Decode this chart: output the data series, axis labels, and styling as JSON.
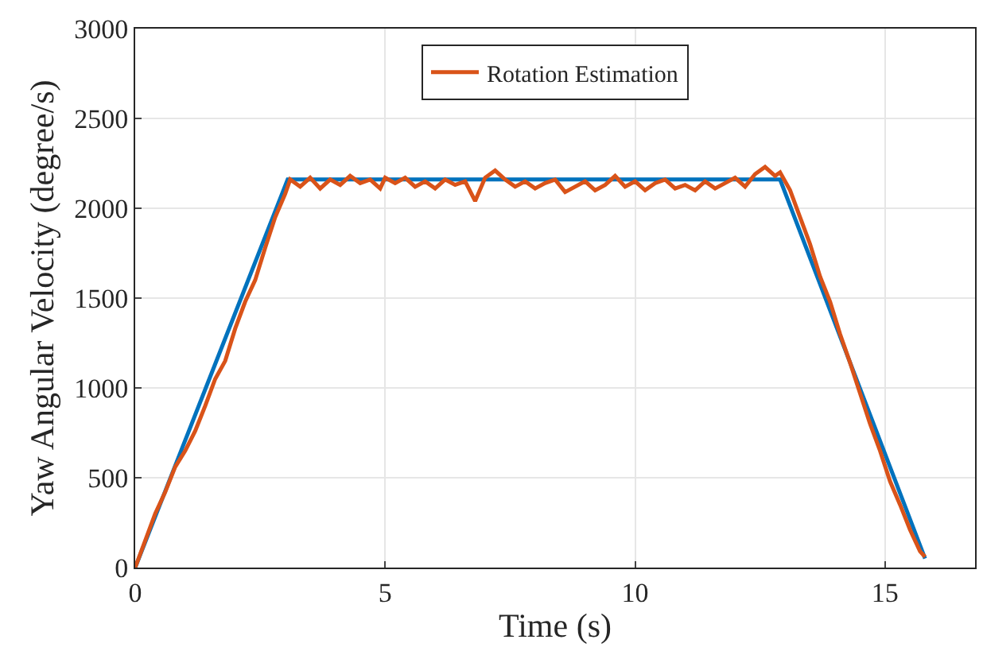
{
  "chart_data": {
    "type": "line",
    "xlabel": "Time (s)",
    "ylabel": "Yaw Angular Velocity (degree/s)",
    "xlim": [
      0,
      16.8
    ],
    "xticks": [
      0,
      5,
      10,
      15
    ],
    "ylim": [
      0,
      3000
    ],
    "yticks": [
      0,
      500,
      1000,
      1500,
      2000,
      2500,
      3000
    ],
    "grid": true,
    "legend": "top",
    "line_style": "solid",
    "marker": "none",
    "series": [
      {
        "color": "#0072bd",
        "x": [
          0,
          3.05,
          12.9,
          15.8
        ],
        "values": [
          0,
          2160,
          2160,
          50
        ]
      },
      {
        "name": "Rotation Estimation",
        "color": "#d95319",
        "x": [
          0,
          0.2,
          0.4,
          0.6,
          0.8,
          1.0,
          1.2,
          1.4,
          1.6,
          1.8,
          2.0,
          2.2,
          2.4,
          2.6,
          2.8,
          3.0,
          3.1,
          3.3,
          3.5,
          3.7,
          3.9,
          4.1,
          4.3,
          4.5,
          4.7,
          4.9,
          5.0,
          5.2,
          5.4,
          5.6,
          5.8,
          6.0,
          6.2,
          6.4,
          6.6,
          6.8,
          7.0,
          7.2,
          7.4,
          7.6,
          7.8,
          8.0,
          8.2,
          8.4,
          8.6,
          8.8,
          9.0,
          9.2,
          9.4,
          9.6,
          9.8,
          10.0,
          10.2,
          10.4,
          10.6,
          10.8,
          11.0,
          11.2,
          11.4,
          11.6,
          11.8,
          12.0,
          12.2,
          12.4,
          12.6,
          12.8,
          12.9,
          13.1,
          13.3,
          13.5,
          13.7,
          13.9,
          14.1,
          14.3,
          14.5,
          14.7,
          14.9,
          15.1,
          15.3,
          15.5,
          15.7,
          15.8
        ],
        "values": [
          0,
          150,
          300,
          420,
          560,
          650,
          760,
          900,
          1050,
          1150,
          1330,
          1480,
          1600,
          1780,
          1950,
          2080,
          2160,
          2120,
          2170,
          2110,
          2160,
          2130,
          2180,
          2140,
          2160,
          2110,
          2170,
          2140,
          2170,
          2120,
          2150,
          2110,
          2160,
          2130,
          2150,
          2040,
          2170,
          2210,
          2160,
          2120,
          2150,
          2110,
          2140,
          2160,
          2090,
          2120,
          2150,
          2100,
          2130,
          2180,
          2120,
          2150,
          2100,
          2140,
          2160,
          2110,
          2130,
          2100,
          2150,
          2110,
          2140,
          2170,
          2120,
          2190,
          2230,
          2180,
          2200,
          2100,
          1950,
          1800,
          1620,
          1480,
          1300,
          1140,
          970,
          800,
          650,
          480,
          350,
          210,
          90,
          60
        ]
      }
    ]
  }
}
